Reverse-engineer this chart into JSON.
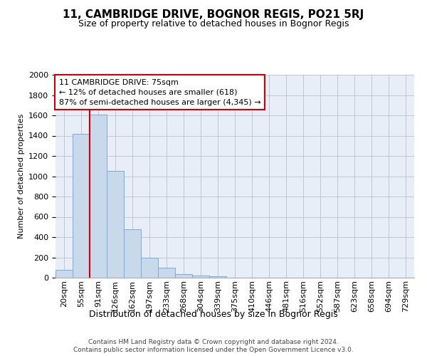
{
  "title": "11, CAMBRIDGE DRIVE, BOGNOR REGIS, PO21 5RJ",
  "subtitle": "Size of property relative to detached houses in Bognor Regis",
  "xlabel": "Distribution of detached houses by size in Bognor Regis",
  "ylabel": "Number of detached properties",
  "categories": [
    "20sqm",
    "55sqm",
    "91sqm",
    "126sqm",
    "162sqm",
    "197sqm",
    "233sqm",
    "268sqm",
    "304sqm",
    "339sqm",
    "375sqm",
    "410sqm",
    "446sqm",
    "481sqm",
    "516sqm",
    "552sqm",
    "587sqm",
    "623sqm",
    "658sqm",
    "694sqm",
    "729sqm"
  ],
  "bar_values": [
    80,
    1420,
    1610,
    1050,
    480,
    200,
    100,
    35,
    20,
    15,
    0,
    0,
    0,
    0,
    0,
    0,
    0,
    0,
    0,
    0,
    0
  ],
  "bar_color": "#c9d9ec",
  "bar_edge_color": "#7aabdb",
  "vline_x_idx": 2,
  "vline_color": "#cc0000",
  "annotation_text": "11 CAMBRIDGE DRIVE: 75sqm\n← 12% of detached houses are smaller (618)\n87% of semi-detached houses are larger (4,345) →",
  "annotation_box_color": "#ffffff",
  "annotation_box_edge": "#cc0000",
  "ylim": [
    0,
    2000
  ],
  "yticks": [
    0,
    200,
    400,
    600,
    800,
    1000,
    1200,
    1400,
    1600,
    1800,
    2000
  ],
  "grid_color": "#c0c8d8",
  "footnote_line1": "Contains HM Land Registry data © Crown copyright and database right 2024.",
  "footnote_line2": "Contains public sector information licensed under the Open Government Licence v3.0.",
  "bg_color": "#e8eef8",
  "title_fontsize": 11,
  "subtitle_fontsize": 9,
  "xlabel_fontsize": 9,
  "ylabel_fontsize": 8,
  "tick_fontsize": 8,
  "annot_fontsize": 8,
  "footnote_fontsize": 6.5
}
